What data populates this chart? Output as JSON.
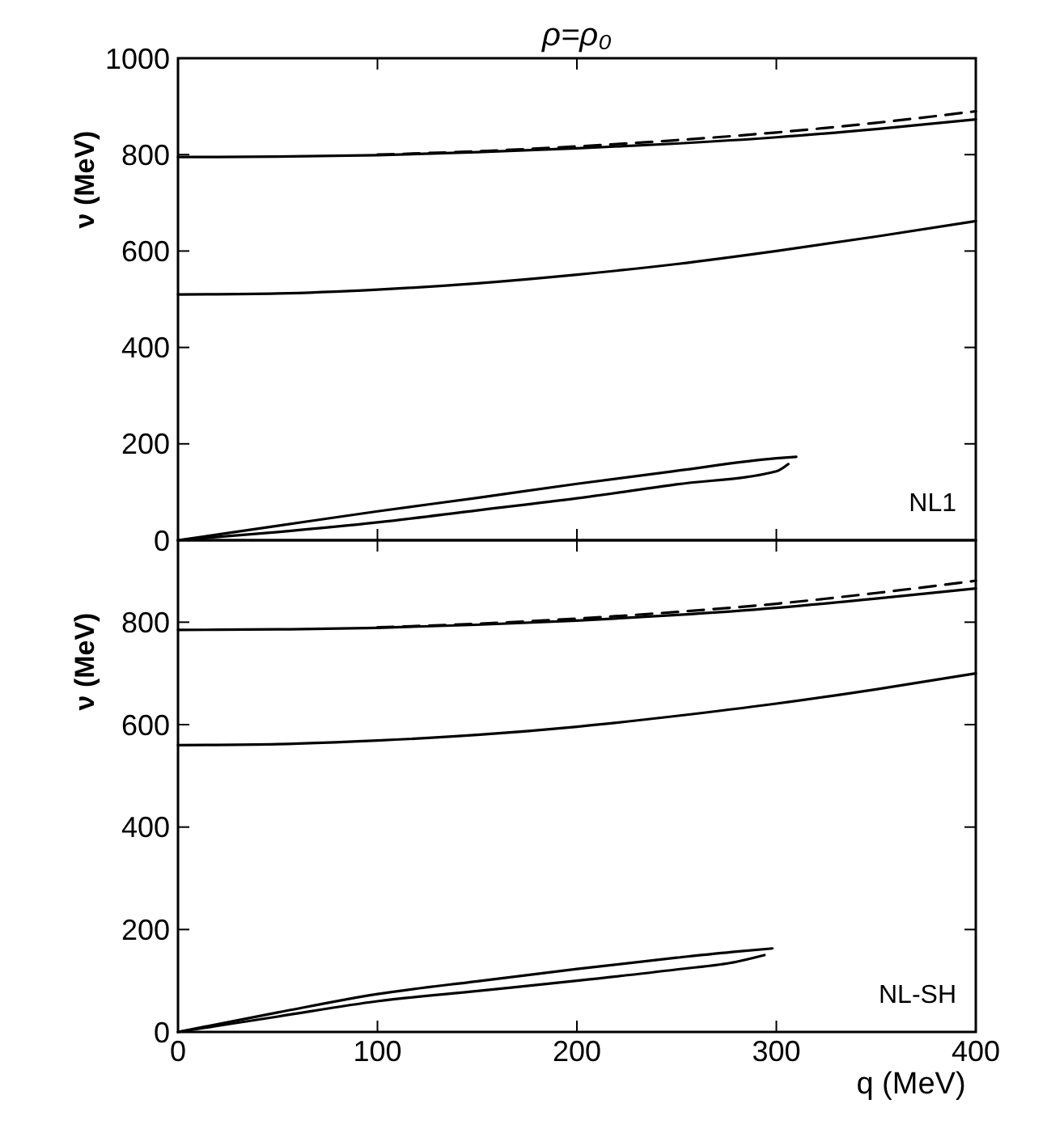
{
  "chart_data": [
    {
      "type": "line",
      "title": "ρ=ρ₀",
      "ylabel": "ν (MeV)",
      "xlim": [
        0,
        400
      ],
      "xticks": [
        0,
        100,
        200,
        300,
        400
      ],
      "ylim": [
        0,
        1000
      ],
      "yticks": [
        0,
        200,
        400,
        600,
        800,
        1000
      ],
      "tick_labels": "y",
      "grid": false,
      "annotations": [
        "NL1"
      ],
      "series": [
        {
          "color": "#000000",
          "x": [
            0,
            50,
            100,
            150,
            200,
            250,
            300,
            350,
            400
          ],
          "values": [
            795,
            796,
            799,
            805,
            813,
            823,
            836,
            853,
            873
          ]
        },
        {
          "color": "#000000",
          "line_style": "dashed",
          "x": [
            100,
            150,
            200,
            250,
            300,
            350,
            400
          ],
          "values": [
            800,
            807,
            817,
            830,
            846,
            866,
            890
          ]
        },
        {
          "color": "#000000",
          "x": [
            0,
            50,
            100,
            150,
            200,
            250,
            300,
            350,
            400
          ],
          "values": [
            510,
            512,
            520,
            533,
            551,
            573,
            600,
            630,
            662
          ]
        },
        {
          "color": "#000000",
          "x": [
            0,
            50,
            100,
            150,
            200,
            250,
            300,
            310
          ],
          "values": [
            0,
            30,
            60,
            88,
            117,
            144,
            170,
            173
          ]
        },
        {
          "color": "#000000",
          "x": [
            0,
            50,
            100,
            150,
            200,
            250,
            300,
            306
          ],
          "values": [
            0,
            17,
            37,
            62,
            87,
            116,
            143,
            158
          ]
        }
      ]
    },
    {
      "type": "line",
      "xlabel": "q (MeV)",
      "ylabel": "ν (MeV)",
      "xlim": [
        0,
        400
      ],
      "xticks": [
        0,
        100,
        200,
        300,
        400
      ],
      "ylim": [
        0,
        960
      ],
      "yticks": [
        0,
        200,
        400,
        600,
        800
      ],
      "grid": false,
      "annotations": [
        "NL-SH"
      ],
      "series": [
        {
          "color": "#000000",
          "x": [
            0,
            50,
            100,
            150,
            200,
            250,
            300,
            350,
            400
          ],
          "values": [
            785,
            786,
            789,
            795,
            803,
            814,
            828,
            846,
            866
          ]
        },
        {
          "color": "#000000",
          "line_style": "dashed",
          "x": [
            100,
            150,
            200,
            250,
            300,
            350,
            400
          ],
          "values": [
            790,
            797,
            807,
            820,
            836,
            857,
            881
          ]
        },
        {
          "color": "#000000",
          "x": [
            0,
            50,
            100,
            150,
            200,
            250,
            300,
            350,
            400
          ],
          "values": [
            560,
            562,
            569,
            580,
            596,
            617,
            641,
            669,
            700
          ]
        },
        {
          "color": "#000000",
          "x": [
            0,
            50,
            100,
            150,
            200,
            250,
            280,
            298
          ],
          "values": [
            0,
            38,
            74,
            99,
            123,
            145,
            157,
            163
          ]
        },
        {
          "color": "#000000",
          "x": [
            0,
            50,
            100,
            150,
            200,
            250,
            280,
            294
          ],
          "values": [
            0,
            30,
            60,
            80,
            100,
            122,
            137,
            150
          ]
        }
      ]
    }
  ]
}
